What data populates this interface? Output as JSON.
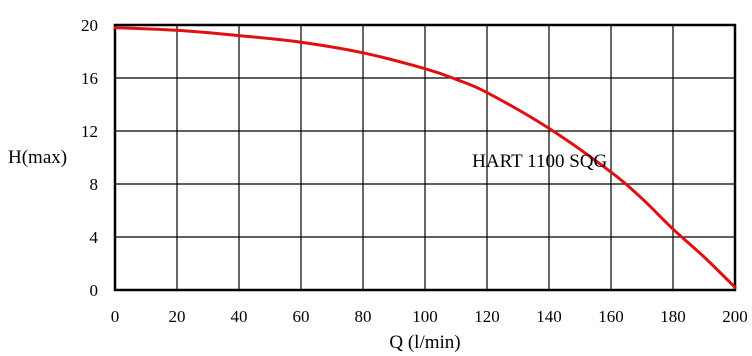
{
  "chart_data": {
    "type": "line",
    "xlabel": "Q (l/min)",
    "ylabel": "H(max)",
    "xlim": [
      0,
      200
    ],
    "ylim": [
      0,
      20
    ],
    "x_ticks": [
      "0",
      "20",
      "40",
      "60",
      "80",
      "100",
      "120",
      "140",
      "160",
      "180",
      "200"
    ],
    "y_ticks": [
      "0",
      "4",
      "8",
      "12",
      "16",
      "20"
    ],
    "grid": true,
    "series": [
      {
        "name": "HART 1100 SQG",
        "color": "#e01010",
        "x": [
          0,
          20,
          40,
          60,
          80,
          100,
          110,
          120,
          140,
          160,
          170,
          180,
          190,
          200
        ],
        "y": [
          19.8,
          19.6,
          19.2,
          18.7,
          17.9,
          16.7,
          15.9,
          14.9,
          12.2,
          8.9,
          6.9,
          4.6,
          2.5,
          0.2
        ]
      }
    ],
    "annotations": [
      {
        "text": "HART 1100 SQG",
        "x": 137,
        "y": 9.3
      }
    ]
  }
}
